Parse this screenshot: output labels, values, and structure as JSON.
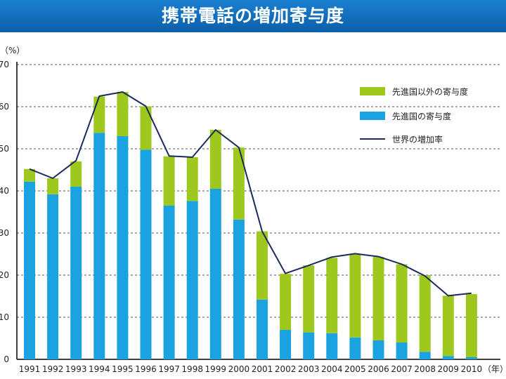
{
  "title": "携帯電話の増加寄与度",
  "chart_data": {
    "type": "bar",
    "stacked": true,
    "title": "携帯電話の増加寄与度",
    "ylabel": "（%）",
    "xlabel": "（年）",
    "ylim": [
      0,
      70
    ],
    "yticks": [
      0,
      10,
      20,
      30,
      40,
      50,
      60,
      70
    ],
    "grid": true,
    "legend_position": "top-right",
    "categories": [
      "1991",
      "1992",
      "1993",
      "1994",
      "1995",
      "1996",
      "1997",
      "1998",
      "1999",
      "2000",
      "2001",
      "2002",
      "2003",
      "2004",
      "2005",
      "2006",
      "2007",
      "2008",
      "2009",
      "2010"
    ],
    "series": [
      {
        "name": "先進国の寄与度",
        "kind": "bar",
        "color": "#1aa3e0",
        "values": [
          42.2,
          39.2,
          41.0,
          53.8,
          53.0,
          49.8,
          36.5,
          37.6,
          40.5,
          33.2,
          14.2,
          7.0,
          6.4,
          6.2,
          5.2,
          4.5,
          4.0,
          1.8,
          0.8,
          0.5
        ]
      },
      {
        "name": "先進国以外の寄与度",
        "kind": "bar",
        "color": "#9ec81e",
        "values": [
          3.0,
          3.8,
          6.0,
          8.6,
          10.5,
          10.3,
          11.7,
          10.4,
          14.0,
          17.1,
          16.2,
          13.3,
          15.9,
          17.9,
          19.8,
          19.8,
          18.6,
          18.2,
          14.3,
          15.0
        ]
      },
      {
        "name": "世界の増加率",
        "kind": "line",
        "color": "#1c2a5c",
        "values": [
          45.2,
          43.0,
          47.2,
          62.5,
          63.5,
          60.1,
          48.3,
          48.0,
          54.5,
          50.3,
          30.4,
          20.4,
          22.3,
          24.3,
          25.1,
          24.4,
          22.6,
          19.8,
          15.1,
          15.7
        ]
      }
    ]
  }
}
